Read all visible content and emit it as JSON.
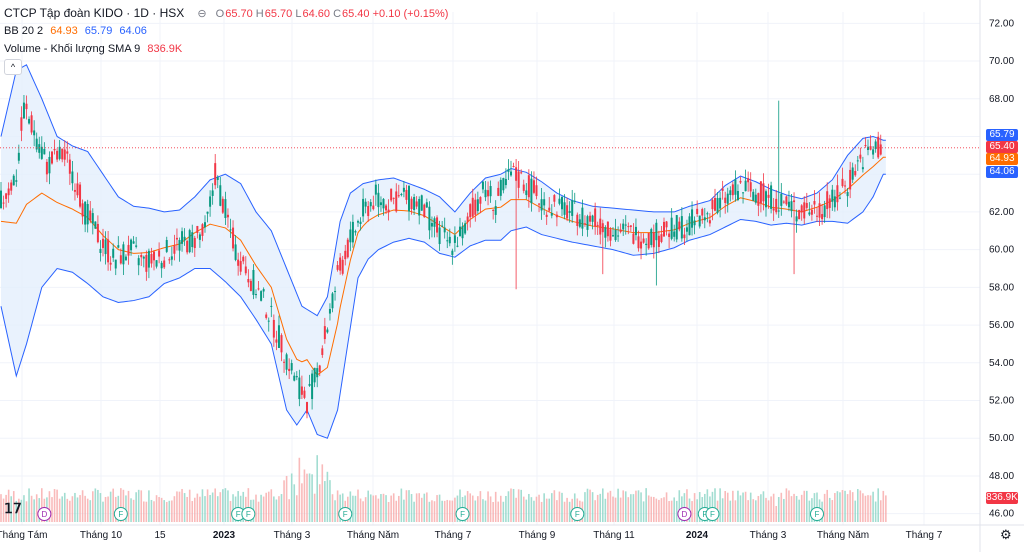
{
  "header": {
    "symbol_title": "CTCP Tập đoàn KIDO · 1D · HSX",
    "ohlc": [
      {
        "label": "O",
        "value": "65.70"
      },
      {
        "label": "H",
        "value": "65.70"
      },
      {
        "label": "L",
        "value": "64.60"
      },
      {
        "label": "C",
        "value": "65.40"
      }
    ],
    "change": "+0.10 (+0.15%)"
  },
  "indicators": {
    "bb": {
      "label": "BB 20 2",
      "mid": "64.93",
      "upper": "65.79",
      "lower": "64.06"
    },
    "volume": {
      "label": "Volume - Khối lượng SMA 9",
      "value": "836.9K"
    }
  },
  "price_tags": [
    {
      "label": "65.79",
      "value": 65.79,
      "color": "#2962ff"
    },
    {
      "label": "65.40",
      "value": 65.4,
      "color": "#f23645"
    },
    {
      "label": "64.93",
      "value": 64.93,
      "color": "#ff6d00"
    },
    {
      "label": "64.06",
      "value": 64.06,
      "color": "#2962ff"
    }
  ],
  "volume_tag": {
    "label": "836.9K",
    "color": "#f23645"
  },
  "colors": {
    "up": "#089981",
    "down": "#f23645",
    "bb_line": "#2962ff",
    "bb_fill": "#e3effd",
    "basis": "#ff6d00"
  },
  "chart_data": {
    "type": "candlestick",
    "y_axis": {
      "ticks": [
        46,
        48,
        50,
        52,
        54,
        56,
        58,
        60,
        62,
        64,
        66,
        68,
        70,
        72
      ],
      "range": [
        45.4,
        72.6
      ]
    },
    "x_axis": {
      "labels": [
        "Tháng Tám",
        "Tháng 10",
        "15",
        "2023",
        "Tháng 3",
        "Tháng Năm",
        "Tháng 7",
        "Tháng 9",
        "Tháng 11",
        "2024",
        "Tháng 3",
        "Tháng Năm",
        "Tháng 7"
      ]
    },
    "price_path": [
      [
        0,
        62.5
      ],
      [
        6,
        64
      ],
      [
        9,
        67.5
      ],
      [
        14,
        66
      ],
      [
        18,
        64.5
      ],
      [
        24,
        65
      ],
      [
        28,
        64.2
      ],
      [
        33,
        62
      ],
      [
        39,
        60.5
      ],
      [
        44,
        59.5
      ],
      [
        50,
        60
      ],
      [
        56,
        59.3
      ],
      [
        62,
        59.5
      ],
      [
        68,
        60.2
      ],
      [
        74,
        60.5
      ],
      [
        80,
        60.8
      ],
      [
        84,
        64
      ],
      [
        88,
        62
      ],
      [
        92,
        60
      ],
      [
        98,
        58.5
      ],
      [
        104,
        57
      ],
      [
        110,
        55
      ],
      [
        116,
        53
      ],
      [
        120,
        52
      ],
      [
        124,
        53.5
      ],
      [
        128,
        56
      ],
      [
        132,
        58.5
      ],
      [
        137,
        60.5
      ],
      [
        142,
        62
      ],
      [
        147,
        62.8
      ],
      [
        152,
        62.5
      ],
      [
        158,
        62.8
      ],
      [
        164,
        62.5
      ],
      [
        170,
        61.2
      ],
      [
        176,
        60.3
      ],
      [
        182,
        61
      ],
      [
        186,
        62.5
      ],
      [
        190,
        63.2
      ],
      [
        194,
        62.5
      ],
      [
        200,
        64
      ],
      [
        206,
        63.5
      ],
      [
        212,
        62.5
      ],
      [
        218,
        62.3
      ],
      [
        224,
        62
      ],
      [
        230,
        61.7
      ],
      [
        236,
        61.3
      ],
      [
        242,
        61
      ],
      [
        248,
        60.8
      ],
      [
        254,
        60.7
      ],
      [
        260,
        60.9
      ],
      [
        266,
        61.2
      ],
      [
        272,
        61.5
      ],
      [
        278,
        62
      ],
      [
        284,
        62.7
      ],
      [
        290,
        63.3
      ],
      [
        296,
        63
      ],
      [
        302,
        62.8
      ],
      [
        308,
        62.4
      ],
      [
        314,
        62
      ],
      [
        320,
        62.2
      ],
      [
        326,
        62.5
      ],
      [
        332,
        63.5
      ],
      [
        336,
        64.6
      ],
      [
        340,
        65.2
      ],
      [
        344,
        65.4
      ]
    ],
    "bb_upper_path": [
      [
        0,
        66
      ],
      [
        6,
        69.5
      ],
      [
        10,
        69.8
      ],
      [
        16,
        68
      ],
      [
        22,
        66
      ],
      [
        28,
        65.5
      ],
      [
        34,
        65.2
      ],
      [
        40,
        64
      ],
      [
        46,
        62.8
      ],
      [
        52,
        62.3
      ],
      [
        58,
        62.2
      ],
      [
        64,
        62
      ],
      [
        70,
        62.1
      ],
      [
        76,
        62.8
      ],
      [
        82,
        63.7
      ],
      [
        88,
        64
      ],
      [
        94,
        63.5
      ],
      [
        100,
        62
      ],
      [
        106,
        61
      ],
      [
        112,
        59
      ],
      [
        118,
        57
      ],
      [
        124,
        56.5
      ],
      [
        128,
        57.5
      ],
      [
        133,
        61.5
      ],
      [
        137,
        63
      ],
      [
        142,
        63.5
      ],
      [
        148,
        63.7
      ],
      [
        154,
        63.8
      ],
      [
        160,
        63.5
      ],
      [
        166,
        63.2
      ],
      [
        172,
        62.8
      ],
      [
        178,
        62
      ],
      [
        184,
        63
      ],
      [
        190,
        63.8
      ],
      [
        196,
        64
      ],
      [
        200,
        64.3
      ],
      [
        206,
        64.1
      ],
      [
        212,
        63.6
      ],
      [
        218,
        63
      ],
      [
        224,
        62.6
      ],
      [
        232,
        62.3
      ],
      [
        240,
        62.2
      ],
      [
        248,
        62.1
      ],
      [
        256,
        62
      ],
      [
        264,
        62
      ],
      [
        270,
        62.3
      ],
      [
        278,
        62.6
      ],
      [
        284,
        63.4
      ],
      [
        290,
        63.9
      ],
      [
        296,
        63.6
      ],
      [
        302,
        63.2
      ],
      [
        308,
        62.9
      ],
      [
        314,
        62.7
      ],
      [
        320,
        63
      ],
      [
        326,
        63.7
      ],
      [
        332,
        65
      ],
      [
        338,
        65.9
      ],
      [
        342,
        66
      ],
      [
        346,
        65.8
      ]
    ],
    "bb_lower_path": [
      [
        0,
        57
      ],
      [
        6,
        53.3
      ],
      [
        10,
        55
      ],
      [
        16,
        58
      ],
      [
        22,
        59
      ],
      [
        28,
        58.8
      ],
      [
        34,
        58.2
      ],
      [
        40,
        57.5
      ],
      [
        46,
        57.2
      ],
      [
        52,
        57.3
      ],
      [
        58,
        57.5
      ],
      [
        64,
        58.2
      ],
      [
        70,
        58.5
      ],
      [
        76,
        59
      ],
      [
        82,
        59
      ],
      [
        88,
        58.3
      ],
      [
        94,
        57.5
      ],
      [
        100,
        56.3
      ],
      [
        106,
        55
      ],
      [
        112,
        51.5
      ],
      [
        116,
        50.7
      ],
      [
        120,
        51.5
      ],
      [
        124,
        50.2
      ],
      [
        128,
        50
      ],
      [
        132,
        51.5
      ],
      [
        136,
        55
      ],
      [
        140,
        58.5
      ],
      [
        144,
        59.5
      ],
      [
        148,
        60
      ],
      [
        154,
        60.4
      ],
      [
        160,
        60.6
      ],
      [
        166,
        60.4
      ],
      [
        172,
        59.8
      ],
      [
        178,
        59.6
      ],
      [
        184,
        60.2
      ],
      [
        190,
        60.5
      ],
      [
        196,
        60.5
      ],
      [
        200,
        61
      ],
      [
        206,
        61.2
      ],
      [
        212,
        60.8
      ],
      [
        218,
        60.6
      ],
      [
        224,
        60.4
      ],
      [
        232,
        60.2
      ],
      [
        240,
        60
      ],
      [
        248,
        59.7
      ],
      [
        256,
        59.8
      ],
      [
        264,
        60.1
      ],
      [
        270,
        60.5
      ],
      [
        278,
        60.8
      ],
      [
        284,
        61.2
      ],
      [
        290,
        61.6
      ],
      [
        296,
        61.5
      ],
      [
        302,
        61.3
      ],
      [
        308,
        61.4
      ],
      [
        314,
        61.3
      ],
      [
        320,
        61.5
      ],
      [
        326,
        61.5
      ],
      [
        332,
        61.4
      ],
      [
        338,
        62
      ],
      [
        342,
        62.8
      ],
      [
        346,
        64
      ]
    ],
    "events": [
      {
        "label": "D",
        "kind": "dividend",
        "slot": 17
      },
      {
        "label": "F",
        "kind": "financial",
        "slot": 47
      },
      {
        "label": "F",
        "kind": "financial",
        "slot": 93
      },
      {
        "label": "F",
        "kind": "financial",
        "slot": 97
      },
      {
        "label": "F",
        "kind": "financial",
        "slot": 135
      },
      {
        "label": "F",
        "kind": "financial",
        "slot": 181
      },
      {
        "label": "F",
        "kind": "financial",
        "slot": 226
      },
      {
        "label": "D",
        "kind": "dividend",
        "slot": 268
      },
      {
        "label": "F",
        "kind": "financial",
        "slot": 276
      },
      {
        "label": "F",
        "kind": "financial",
        "slot": 279
      },
      {
        "label": "F",
        "kind": "financial",
        "slot": 320
      }
    ]
  }
}
